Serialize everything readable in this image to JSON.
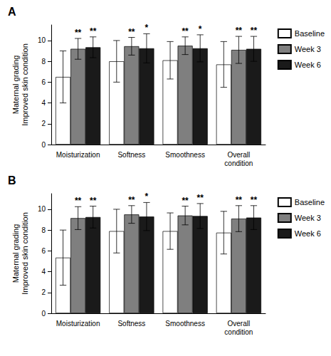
{
  "chart_data": [
    {
      "type": "bar",
      "title": "A",
      "categories": [
        "Moisturization",
        "Softness",
        "Smoothness",
        "Overall\ncondition"
      ],
      "y_label": "Maternal grading\nImproved skin condition",
      "series": [
        {
          "name": "Baseline",
          "color": "#FFFFFF",
          "values": [
            6.5,
            8.0,
            8.1,
            7.7
          ],
          "errors": [
            2.5,
            2.0,
            1.8,
            2.2
          ]
        },
        {
          "name": "Week 3",
          "color": "#7f7f7f",
          "values": [
            9.2,
            9.45,
            9.5,
            9.1
          ],
          "errors": [
            1.0,
            0.85,
            0.85,
            1.3
          ],
          "annotations": [
            "**",
            "**",
            "**",
            "**"
          ]
        },
        {
          "name": "Week 6",
          "color": "#1a1a1a",
          "values": [
            9.35,
            9.25,
            9.25,
            9.2
          ],
          "errors": [
            1.0,
            1.4,
            1.3,
            1.2
          ],
          "annotations": [
            "**",
            "*",
            "*",
            "**"
          ]
        }
      ],
      "ylim": [
        0,
        11.5
      ],
      "yticks": [
        0,
        2,
        4,
        6,
        8,
        10
      ],
      "grid": false,
      "legend": "upper right"
    },
    {
      "type": "bar",
      "title": "B",
      "categories": [
        "Moisturization",
        "Softness",
        "Smoothness",
        "Overall\ncondition"
      ],
      "y_label": "Maternal grading\nImproved skin condition",
      "series": [
        {
          "name": "Baseline",
          "color": "#FFFFFF",
          "values": [
            5.35,
            7.9,
            7.9,
            7.75
          ],
          "errors": [
            2.65,
            2.1,
            1.75,
            2.05
          ]
        },
        {
          "name": "Week 3",
          "color": "#7f7f7f",
          "values": [
            9.15,
            9.5,
            9.4,
            9.1
          ],
          "errors": [
            1.1,
            0.85,
            0.9,
            1.25
          ],
          "annotations": [
            "**",
            "**",
            "**",
            "**"
          ]
        },
        {
          "name": "Week 6",
          "color": "#1a1a1a",
          "values": [
            9.25,
            9.3,
            9.35,
            9.2
          ],
          "errors": [
            1.05,
            1.35,
            1.2,
            1.15
          ],
          "annotations": [
            "**",
            "*",
            "**",
            "**"
          ]
        }
      ],
      "ylim": [
        0,
        11.5
      ],
      "yticks": [
        0,
        2,
        4,
        6,
        8,
        10
      ],
      "grid": false,
      "legend": "upper right"
    }
  ]
}
